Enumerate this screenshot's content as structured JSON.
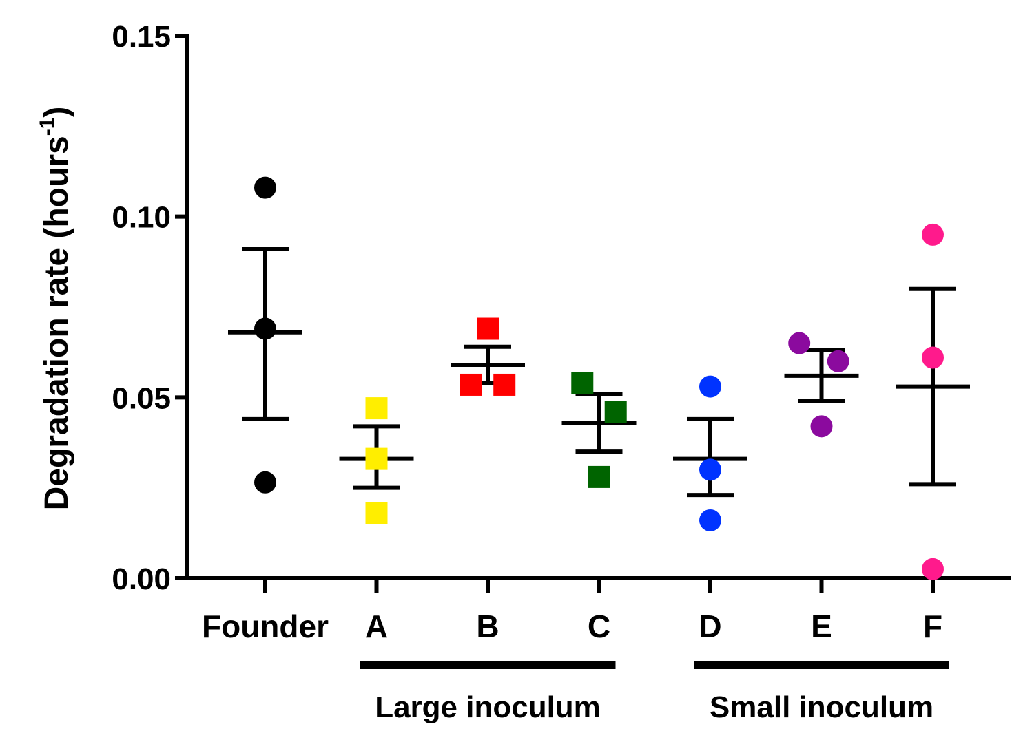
{
  "chart_data": {
    "type": "scatter",
    "title": "",
    "xlabel": "",
    "ylabel": "Degradation rate (hours",
    "ylabel_superscript": "-1",
    "ylabel_close": ")",
    "ylim": [
      0,
      0.15
    ],
    "yticks": [
      {
        "value": 0.0,
        "label": "0.00"
      },
      {
        "value": 0.05,
        "label": "0.05"
      },
      {
        "value": 0.1,
        "label": "0.10"
      },
      {
        "value": 0.15,
        "label": "0.15"
      }
    ],
    "categories": [
      "Founder",
      "A",
      "B",
      "C",
      "D",
      "E",
      "F"
    ],
    "series": [
      {
        "name": "Founder",
        "marker": "circle",
        "color": "#000000",
        "points": [
          {
            "dx": 0,
            "y": 0.108
          },
          {
            "dx": 0,
            "y": 0.069
          },
          {
            "dx": 0,
            "y": 0.0265
          }
        ],
        "mean": 0.068,
        "sem_low": 0.044,
        "sem_high": 0.091
      },
      {
        "name": "A",
        "marker": "square",
        "color": "#ffee00",
        "points": [
          {
            "dx": 0,
            "y": 0.047
          },
          {
            "dx": 0,
            "y": 0.033
          },
          {
            "dx": 0,
            "y": 0.018
          }
        ],
        "mean": 0.033,
        "sem_low": 0.025,
        "sem_high": 0.042
      },
      {
        "name": "B",
        "marker": "square",
        "color": "#ff0000",
        "points": [
          {
            "dx": -0.15,
            "y": 0.0535
          },
          {
            "dx": 0,
            "y": 0.069
          },
          {
            "dx": 0.15,
            "y": 0.0535
          }
        ],
        "mean": 0.059,
        "sem_low": 0.054,
        "sem_high": 0.064
      },
      {
        "name": "C",
        "marker": "square",
        "color": "#006400",
        "points": [
          {
            "dx": -0.15,
            "y": 0.054
          },
          {
            "dx": 0.15,
            "y": 0.046
          },
          {
            "dx": 0,
            "y": 0.028
          }
        ],
        "mean": 0.043,
        "sem_low": 0.035,
        "sem_high": 0.051
      },
      {
        "name": "D",
        "marker": "circle",
        "color": "#0033ff",
        "points": [
          {
            "dx": 0,
            "y": 0.053
          },
          {
            "dx": 0,
            "y": 0.03
          },
          {
            "dx": 0,
            "y": 0.016
          }
        ],
        "mean": 0.033,
        "sem_low": 0.023,
        "sem_high": 0.044
      },
      {
        "name": "E",
        "marker": "circle",
        "color": "#8b0a9e",
        "points": [
          {
            "dx": -0.2,
            "y": 0.065
          },
          {
            "dx": 0.15,
            "y": 0.06
          },
          {
            "dx": 0,
            "y": 0.042
          }
        ],
        "mean": 0.056,
        "sem_low": 0.049,
        "sem_high": 0.063
      },
      {
        "name": "F",
        "marker": "circle",
        "color": "#ff1a8c",
        "points": [
          {
            "dx": 0,
            "y": 0.095
          },
          {
            "dx": 0,
            "y": 0.061
          },
          {
            "dx": 0,
            "y": 0.0025
          }
        ],
        "mean": 0.053,
        "sem_low": 0.026,
        "sem_high": 0.08
      }
    ],
    "groups": [
      {
        "label": "Large inoculum",
        "categories": [
          "A",
          "C"
        ]
      },
      {
        "label": "Small inoculum",
        "categories": [
          "D",
          "F"
        ]
      }
    ],
    "grid": false,
    "legend": "none"
  }
}
